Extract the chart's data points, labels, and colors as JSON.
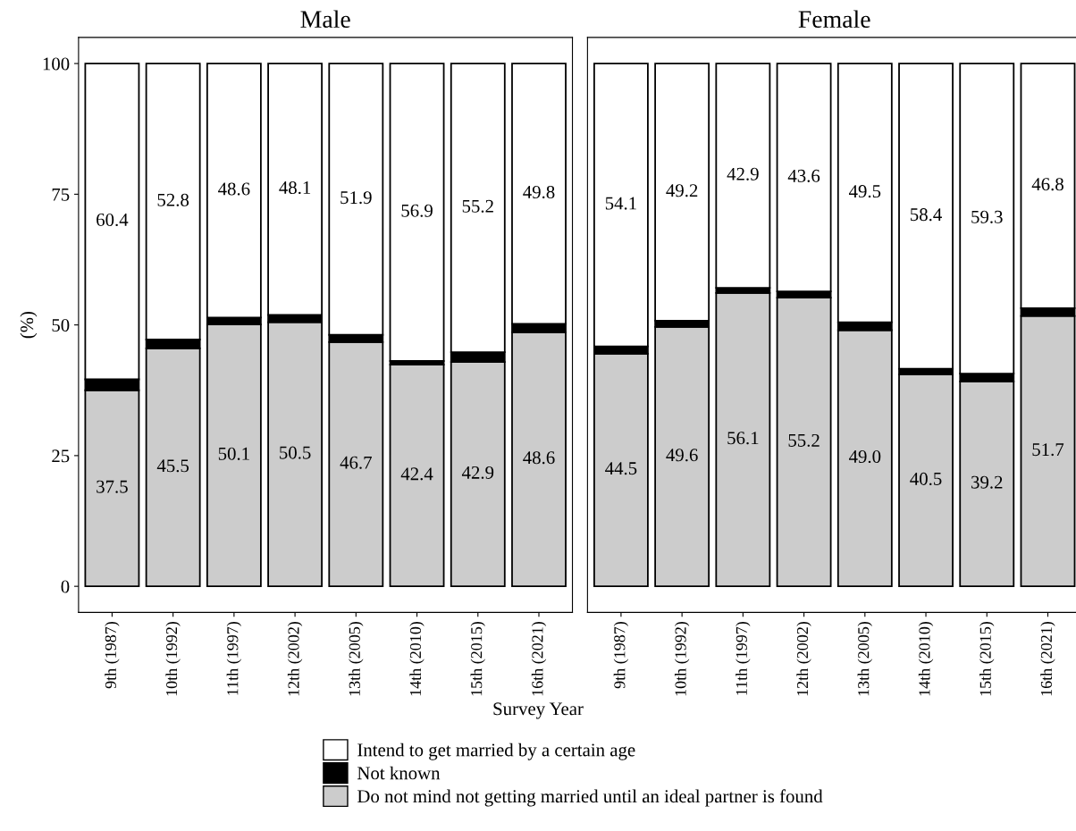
{
  "chart_data": [
    {
      "type": "bar",
      "title": "Male",
      "xlabel": "Survey Year",
      "ylabel": "(%)",
      "stacked": true,
      "legend": "bottom",
      "categories": [
        "9th (1987)",
        "10th (1992)",
        "11th (1997)",
        "12th (2002)",
        "13th (2005)",
        "14th (2010)",
        "15th (2015)",
        "16th (2021)"
      ],
      "ylim": [
        -5,
        105
      ],
      "yticks": [
        0,
        25,
        50,
        75,
        100
      ],
      "series": [
        {
          "name": "Do not mind not getting married until an ideal partner is found",
          "color": "#cccccc",
          "values": [
            37.5,
            45.5,
            50.1,
            50.5,
            46.7,
            42.4,
            42.9,
            48.6
          ],
          "value_labels": [
            "37.5",
            "45.5",
            "50.1",
            "50.5",
            "46.7",
            "42.4",
            "42.9",
            "48.6"
          ]
        },
        {
          "name": "Not known",
          "color": "#000000",
          "values": [
            2.1,
            1.7,
            1.3,
            1.4,
            1.4,
            0.7,
            1.9,
            1.6
          ]
        },
        {
          "name": "Intend to get married by a certain age",
          "color": "#ffffff",
          "values": [
            60.4,
            52.8,
            48.6,
            48.1,
            51.9,
            56.9,
            55.2,
            49.8
          ],
          "value_labels": [
            "60.4",
            "52.8",
            "48.6",
            "48.1",
            "51.9",
            "56.9",
            "55.2",
            "49.8"
          ]
        }
      ]
    },
    {
      "type": "bar",
      "title": "Female",
      "stacked": true,
      "tick_labels": "x",
      "categories": [
        "9th (1987)",
        "10th (1992)",
        "11th (1997)",
        "12th (2002)",
        "13th (2005)",
        "14th (2010)",
        "15th (2015)",
        "16th (2021)"
      ],
      "ylim": [
        -5,
        105
      ],
      "yticks": [
        0,
        25,
        50,
        75,
        100
      ],
      "series": [
        {
          "color": "#cccccc",
          "values": [
            44.5,
            49.6,
            56.1,
            55.2,
            49.0,
            40.5,
            39.2,
            51.7
          ],
          "value_labels": [
            "44.5",
            "49.6",
            "56.1",
            "55.2",
            "49.0",
            "40.5",
            "39.2",
            "51.7"
          ]
        },
        {
          "color": "#000000",
          "values": [
            1.4,
            1.2,
            1.0,
            1.2,
            1.5,
            1.1,
            1.5,
            1.5
          ]
        },
        {
          "color": "#ffffff",
          "values": [
            54.1,
            49.2,
            42.9,
            43.6,
            49.5,
            58.4,
            59.3,
            46.8
          ],
          "value_labels": [
            "54.1",
            "49.2",
            "42.9",
            "43.6",
            "49.5",
            "58.4",
            "59.3",
            "46.8"
          ]
        }
      ]
    }
  ]
}
